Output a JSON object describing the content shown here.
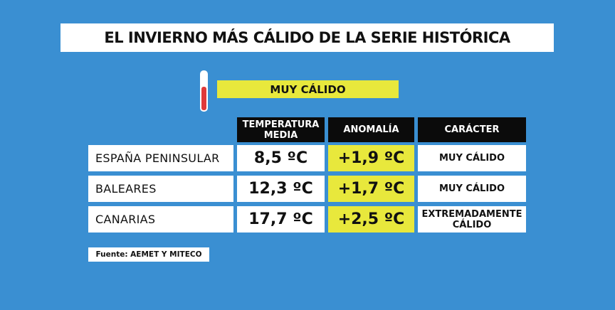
{
  "title": "EL INVIERNO MÁS CÁLIDO DE LA SERIE HISTÓRICA",
  "legend": "MUY CÁLIDO",
  "table": {
    "headers": [
      "TEMPERATURA MEDIA",
      "ANOMALÍA",
      "CARÁCTER"
    ],
    "rows": [
      [
        "ESPAÑA PENINSULAR",
        "8,5 ºC",
        "+1,9 ºC",
        "MUY CÁLIDO"
      ],
      [
        "BALEARES",
        "12,3 ºC",
        "+1,7 ºC",
        "MUY CÁLIDO"
      ],
      [
        "CANARIAS",
        "17,7 ºC",
        "+2,5 ºC",
        "EXTREMADAMENTE CÁLIDO"
      ]
    ]
  },
  "source": "Fuente: AEMET Y MITECO"
}
